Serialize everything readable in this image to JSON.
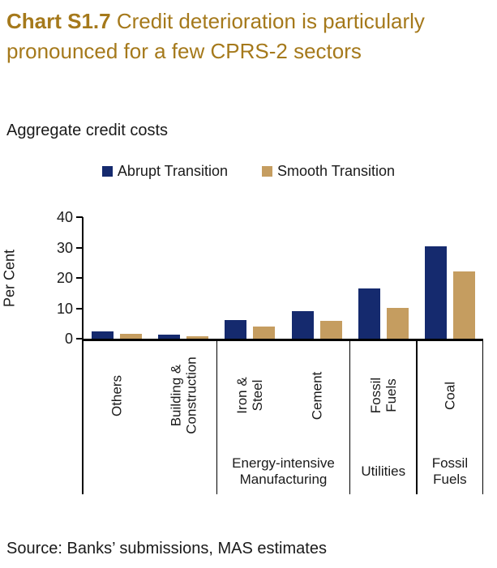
{
  "title": {
    "bold": "Chart S1.7",
    "text": "Credit deterioration is particularly pronounced for a few CPRS-2 sectors",
    "color": "#a5791b"
  },
  "subtitle": "Aggregate credit costs",
  "source": "Source: Banks’ submissions, MAS estimates",
  "chart_data": {
    "type": "bar",
    "title": "Aggregate credit costs",
    "xlabel": "",
    "ylabel": "Per Cent",
    "ylim": [
      0,
      40
    ],
    "yticks": [
      0,
      10,
      20,
      30,
      40
    ],
    "grid": false,
    "legend_position": "top",
    "categories": [
      "Others",
      "Building & Construction",
      "Iron & Steel",
      "Cement",
      "Fossil Fuels",
      "Coal"
    ],
    "group_labels": [
      {
        "label": "",
        "span": 2
      },
      {
        "label": "Energy-intensive Manufacturing",
        "span": 2
      },
      {
        "label": "Utilities",
        "span": 1
      },
      {
        "label": "Fossil Fuels",
        "span": 1
      }
    ],
    "series": [
      {
        "name": "Abrupt Transition",
        "color": "#152a6e",
        "values": [
          2.4,
          1.3,
          6.1,
          9.2,
          16.6,
          30.4
        ]
      },
      {
        "name": "Smooth Transition",
        "color": "#c59d60",
        "values": [
          1.5,
          0.9,
          4.0,
          5.9,
          10.2,
          22.2
        ]
      }
    ]
  }
}
